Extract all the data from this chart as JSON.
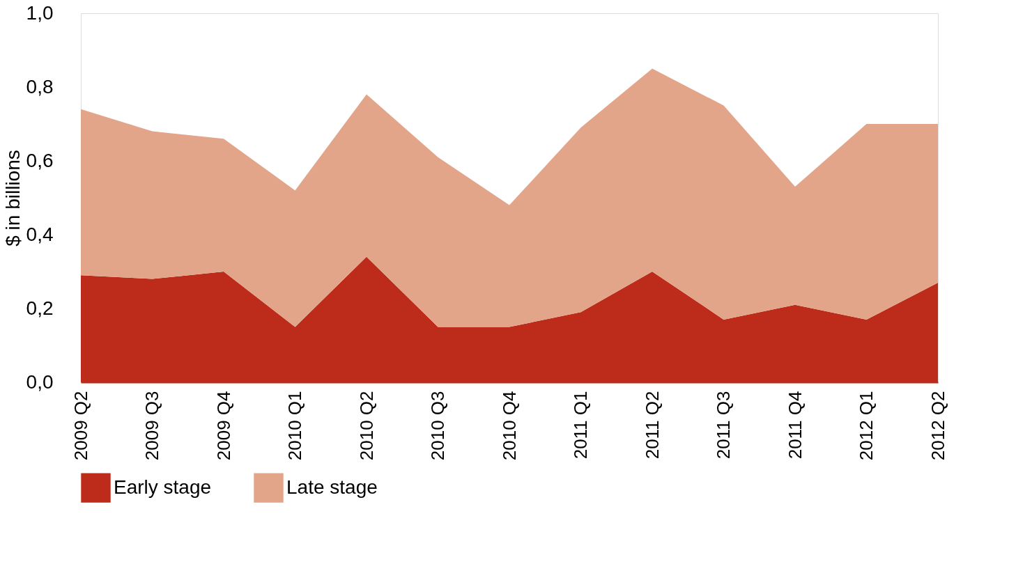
{
  "chart_data": {
    "type": "area",
    "ylabel": "$ in billions",
    "stacked": true,
    "categories": [
      "2009 Q2",
      "2009 Q3",
      "2009 Q4",
      "2010 Q1",
      "2010 Q2",
      "2010 Q3",
      "2010 Q4",
      "2011 Q1",
      "2011 Q2",
      "2011 Q3",
      "2011 Q4",
      "2012 Q1",
      "2012 Q2"
    ],
    "series": [
      {
        "name": "Early stage",
        "color": "#bd2c1a",
        "values": [
          0.29,
          0.28,
          0.3,
          0.15,
          0.34,
          0.15,
          0.15,
          0.19,
          0.3,
          0.17,
          0.21,
          0.17,
          0.27
        ]
      },
      {
        "name": "Late stage",
        "color": "#e3a589",
        "values": [
          0.45,
          0.4,
          0.36,
          0.37,
          0.44,
          0.46,
          0.33,
          0.5,
          0.55,
          0.58,
          0.32,
          0.53,
          0.43
        ]
      }
    ],
    "ylim": [
      0,
      1.0
    ],
    "yticks": [
      {
        "value": 0,
        "label": "0,0"
      },
      {
        "value": 0.2,
        "label": "0,2"
      },
      {
        "value": 0.4,
        "label": "0,4"
      },
      {
        "value": 0.6,
        "label": "0,6"
      },
      {
        "value": 0.8,
        "label": "0,8"
      },
      {
        "value": 1.0,
        "label": "1,0"
      }
    ],
    "grid": false,
    "legend": "bottom"
  }
}
